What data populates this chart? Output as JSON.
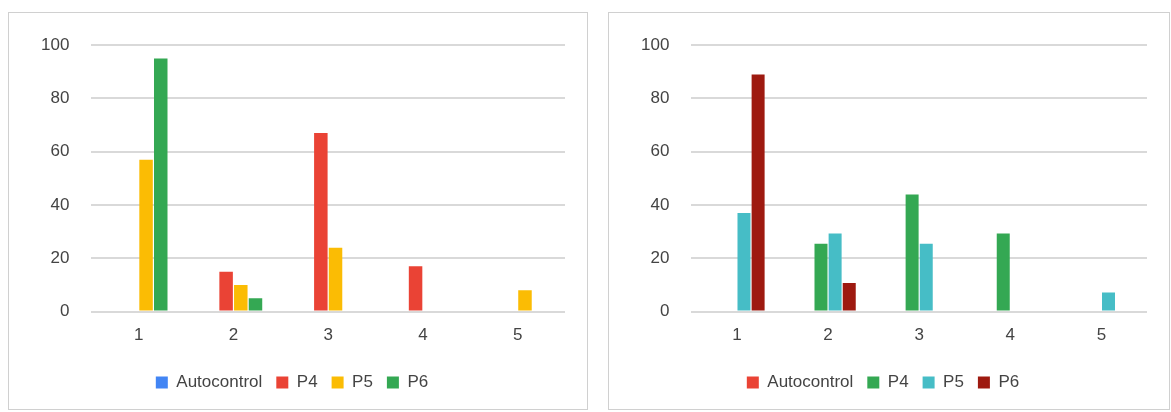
{
  "chart_data": [
    {
      "type": "bar",
      "categories": [
        "1",
        "2",
        "3",
        "4",
        "5"
      ],
      "series": [
        {
          "name": "Autocontrol",
          "color": "#4285f4",
          "values": [
            0,
            0,
            0,
            0,
            0
          ]
        },
        {
          "name": "P4",
          "color": "#ea4335",
          "values": [
            0,
            15,
            67,
            17,
            0
          ]
        },
        {
          "name": "P5",
          "color": "#fbbc04",
          "values": [
            57,
            10,
            24,
            0,
            8
          ]
        },
        {
          "name": "P6",
          "color": "#34a853",
          "values": [
            95,
            5,
            0,
            0,
            0
          ]
        }
      ],
      "ylim": [
        0,
        100
      ],
      "yticks": [
        0,
        20,
        40,
        60,
        80,
        100
      ],
      "grid": "y",
      "legend": "bottom"
    },
    {
      "type": "bar",
      "categories": [
        "1",
        "2",
        "3",
        "4",
        "5"
      ],
      "series": [
        {
          "name": "Autocontrol",
          "color": "#ea4335",
          "values": [
            0,
            0,
            0,
            0,
            0
          ]
        },
        {
          "name": "P4",
          "color": "#34a853",
          "values": [
            0,
            25.5,
            44,
            29.3,
            0
          ]
        },
        {
          "name": "P5",
          "color": "#46bdc6",
          "values": [
            37,
            29.3,
            25.5,
            0,
            7.2
          ]
        },
        {
          "name": "P6",
          "color": "#9e1a10",
          "values": [
            89,
            10.7,
            0,
            0,
            0
          ]
        }
      ],
      "ylim": [
        0,
        100
      ],
      "yticks": [
        0,
        20,
        40,
        60,
        80,
        100
      ],
      "grid": "y",
      "legend": "bottom"
    }
  ]
}
